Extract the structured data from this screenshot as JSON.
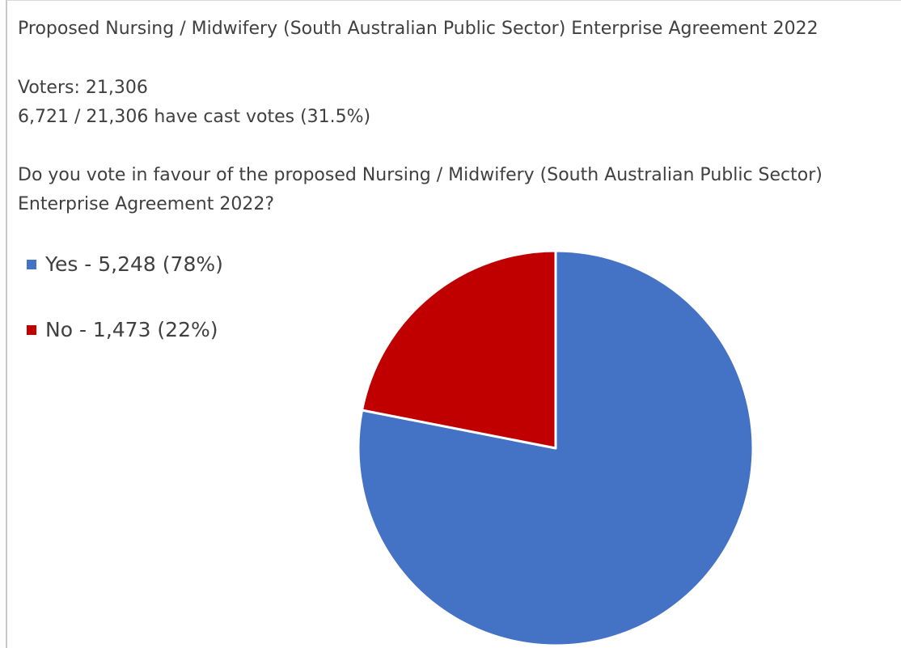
{
  "header": {
    "title": "Proposed Nursing / Midwifery (South Australian Public Sector) Enterprise Agreement 2022",
    "voters": "Voters: 21,306",
    "cast": "6,721 / 21,306 have cast votes (31.5%)",
    "question": "Do you vote in favour of the proposed Nursing / Midwifery (South Australian Public Sector) Enterprise Agreement 2022?"
  },
  "chart_data": {
    "type": "pie",
    "legend_position": "left",
    "slices": [
      {
        "label": "Yes - 5,248 (78%)",
        "category": "Yes",
        "value": 5248,
        "percent": 78,
        "color": "#4472c4"
      },
      {
        "label": "No - 1,473 (22%)",
        "category": "No",
        "value": 1473,
        "percent": 22,
        "color": "#c00000"
      }
    ]
  }
}
